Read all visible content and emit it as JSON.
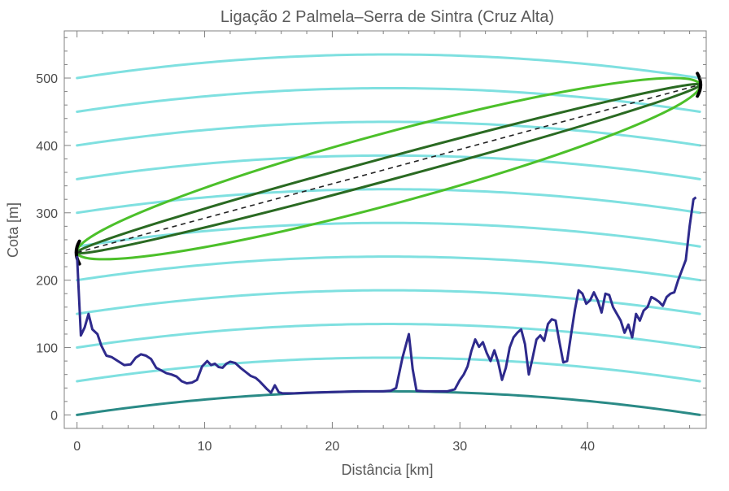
{
  "chart_data": {
    "type": "line",
    "title": "Ligação 2 Palmela–Serra de Sintra (Cruz Alta)",
    "xlabel": "Distância [km]",
    "ylabel": "Cota [m]",
    "xlim": [
      -1,
      49.3
    ],
    "ylim": [
      -20,
      570
    ],
    "xticks": [
      0,
      10,
      20,
      30,
      40
    ],
    "xticklabels": [
      "0",
      "10",
      "20",
      "30",
      "40"
    ],
    "yticks": [
      0,
      100,
      200,
      300,
      400,
      500
    ],
    "yticklabels": [
      "0",
      "100",
      "200",
      "300",
      "400",
      "500"
    ],
    "grid": false,
    "legend": "none",
    "colors": {
      "terrain": "#2e2a8c",
      "earth_curve": "#2a8a86",
      "height_curves": "#7fe0e0",
      "fresnel_inner": "#2a6a22",
      "fresnel_outer": "#4cc02a",
      "line_of_sight": "#222222",
      "antenna": "#000000"
    },
    "earth_curvature": {
      "x_end": 48.8,
      "mid_height": 35,
      "offsets": [
        0,
        50,
        100,
        150,
        200,
        250,
        300,
        350,
        400,
        450,
        500
      ]
    },
    "line_of_sight": {
      "x": [
        0,
        48.8
      ],
      "y": [
        241,
        490
      ]
    },
    "fresnel_zones": [
      {
        "rel_width": 0.035,
        "kind": "inner"
      },
      {
        "rel_width": 0.11,
        "kind": "outer"
      }
    ],
    "series": [
      {
        "x": [
          0,
          0.3,
          0.6,
          0.9,
          1.2,
          1.6,
          1.9,
          2.3,
          2.7,
          3.2,
          3.7,
          4.2,
          4.6,
          5.0,
          5.4,
          5.8,
          6.2,
          6.6,
          7.0,
          7.4,
          7.8,
          8.2,
          8.6,
          9.0,
          9.4,
          9.8,
          10.2,
          10.5,
          10.8,
          11.1,
          11.4,
          11.7,
          12.0,
          12.4,
          12.8,
          13.2,
          13.6,
          14.0,
          14.3,
          14.6,
          14.9,
          15.2,
          15.5,
          15.8,
          16.1,
          16.5,
          17.0,
          18.0,
          20.0,
          22.0,
          24.0,
          24.6,
          25.0,
          25.5,
          26.0,
          26.3,
          26.6,
          27.2,
          28.0,
          29.0,
          29.6,
          30.0,
          30.3,
          30.6,
          30.9,
          31.2,
          31.5,
          31.8,
          32.1,
          32.4,
          32.7,
          33.0,
          33.3,
          33.6,
          33.9,
          34.2,
          34.5,
          34.8,
          35.1,
          35.4,
          35.7,
          36.0,
          36.3,
          36.6,
          36.9,
          37.2,
          37.5,
          37.8,
          38.1,
          38.4,
          38.7,
          39.0,
          39.3,
          39.6,
          39.9,
          40.2,
          40.5,
          40.8,
          41.1,
          41.4,
          41.7,
          42.0,
          42.3,
          42.6,
          42.9,
          43.2,
          43.5,
          43.8,
          44.1,
          44.4,
          44.7,
          45.0,
          45.3,
          45.6,
          45.9,
          46.2,
          46.5,
          46.8,
          47.1,
          47.4,
          47.7,
          48.0,
          48.3,
          48.5
        ],
        "y": [
          236,
          118,
          130,
          150,
          127,
          120,
          103,
          88,
          86,
          80,
          74,
          75,
          85,
          90,
          88,
          83,
          70,
          66,
          62,
          60,
          57,
          50,
          47,
          48,
          52,
          72,
          80,
          74,
          76,
          71,
          70,
          76,
          79,
          77,
          70,
          64,
          58,
          55,
          50,
          44,
          38,
          33,
          44,
          34,
          32,
          32,
          32,
          33,
          34,
          35,
          35,
          36,
          40,
          85,
          120,
          68,
          36,
          35,
          35,
          35,
          38,
          52,
          60,
          72,
          95,
          112,
          101,
          108,
          92,
          80,
          96,
          78,
          52,
          70,
          100,
          115,
          122,
          127,
          105,
          60,
          85,
          112,
          118,
          110,
          135,
          142,
          140,
          108,
          78,
          80,
          118,
          155,
          185,
          180,
          165,
          170,
          182,
          170,
          152,
          180,
          178,
          160,
          150,
          140,
          122,
          134,
          115,
          150,
          140,
          155,
          160,
          175,
          172,
          168,
          162,
          175,
          180,
          182,
          200,
          215,
          230,
          280,
          320,
          323
        ]
      }
    ]
  }
}
